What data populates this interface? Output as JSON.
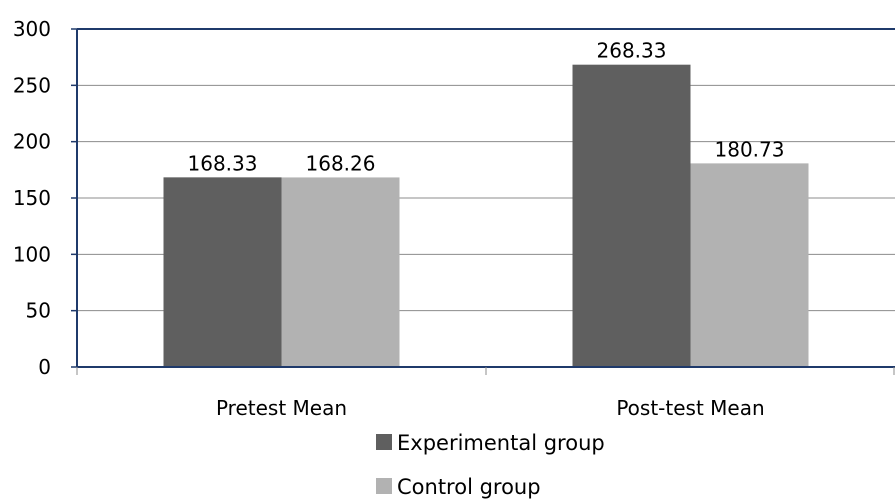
{
  "chart_data": {
    "type": "bar",
    "title": "",
    "xlabel": "",
    "ylabel": "",
    "categories": [
      "Pretest Mean",
      "Post-test Mean"
    ],
    "series": [
      {
        "name": "Experimental group",
        "values": [
          168.33,
          268.33
        ],
        "labels": [
          "168.33",
          "268.33"
        ],
        "color": "#5f5f5f"
      },
      {
        "name": "Control group",
        "values": [
          168.26,
          180.73
        ],
        "labels": [
          "168.26",
          "180.73"
        ],
        "color": "#b2b2b2"
      }
    ],
    "ylim": [
      0,
      300
    ],
    "yticks": [
      0,
      50,
      100,
      150,
      200,
      250,
      300
    ],
    "ytick_labels": [
      "0",
      "50",
      "100",
      "150",
      "200",
      "250",
      "300"
    ],
    "grid": true,
    "legend_position": "bottom",
    "colors": {
      "gridline": "#8c8c8c",
      "axis": "#1f3a6b"
    }
  }
}
